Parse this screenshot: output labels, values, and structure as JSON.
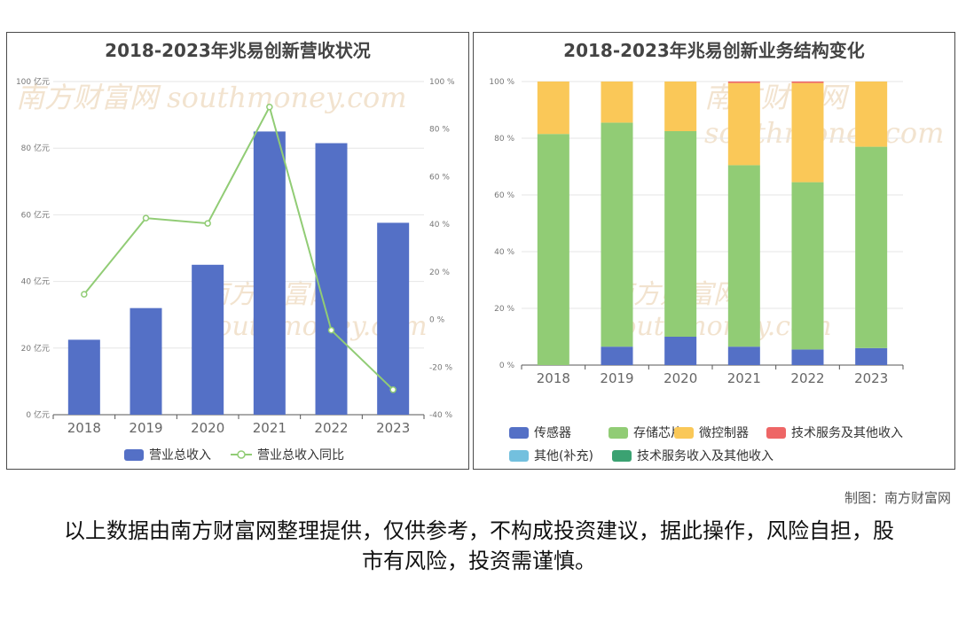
{
  "watermark": "南方财富网 southmoney.com",
  "credit": "制图：南方财富网",
  "disclaimer": "以上数据由南方财富网整理提供，仅供参考，不构成投资建议，据此操作，风险自担，股市有风险，投资需谨慎。",
  "colors": {
    "bar": "#5470c6",
    "line": "#91cc75",
    "sensor": "#5470c6",
    "storage": "#91cc75",
    "mcu": "#fac858",
    "tech": "#ee6666",
    "other": "#73c0de",
    "tech2": "#3ba272"
  },
  "chart_data": [
    {
      "type": "bar",
      "title": "2018-2023年兆易创新营收状况",
      "categories": [
        "2018",
        "2019",
        "2020",
        "2021",
        "2022",
        "2023"
      ],
      "y_left": {
        "ticks": [
          "0 亿元",
          "20 亿元",
          "40 亿元",
          "60 亿元",
          "80 亿元",
          "100 亿元"
        ],
        "ylim": [
          0,
          100
        ]
      },
      "y_right": {
        "ticks": [
          "-40 %",
          "-20 %",
          "0 %",
          "20 %",
          "40 %",
          "60 %",
          "80 %",
          "100 %"
        ],
        "ylim": [
          -40,
          100
        ]
      },
      "series": [
        {
          "name": "营业总收入",
          "type": "bar",
          "axis": "left",
          "values": [
            22.5,
            32,
            45,
            85,
            81.5,
            57.6
          ]
        },
        {
          "name": "营业总收入同比",
          "type": "line",
          "axis": "right",
          "values": [
            10.6,
            42.6,
            40.4,
            89.3,
            -4.5,
            -29.5
          ]
        }
      ],
      "legend_position": "bottom"
    },
    {
      "type": "bar",
      "stacked": true,
      "title": "2018-2023年兆易创新业务结构变化",
      "categories": [
        "2018",
        "2019",
        "2020",
        "2021",
        "2022",
        "2023"
      ],
      "y_ticks": [
        "0 %",
        "20 %",
        "40 %",
        "60 %",
        "80 %",
        "100 %"
      ],
      "ylim": [
        0,
        100
      ],
      "series": [
        {
          "name": "传感器",
          "values": [
            0,
            6.5,
            10,
            6.5,
            5.5,
            6
          ]
        },
        {
          "name": "存储芯片",
          "values": [
            81.5,
            79,
            72.5,
            64,
            59,
            71
          ]
        },
        {
          "name": "微控制器",
          "values": [
            18.5,
            14.5,
            17.5,
            29,
            35,
            23
          ]
        },
        {
          "name": "技术服务及其他收入",
          "values": [
            0,
            0,
            0,
            0.5,
            0.5,
            0
          ]
        },
        {
          "name": "其他(补充)",
          "values": [
            0,
            0,
            0,
            0,
            0,
            0
          ]
        },
        {
          "name": "技术服务收入及其他收入",
          "values": [
            0,
            0,
            0,
            0,
            0,
            0
          ]
        }
      ],
      "legend_position": "bottom"
    }
  ]
}
